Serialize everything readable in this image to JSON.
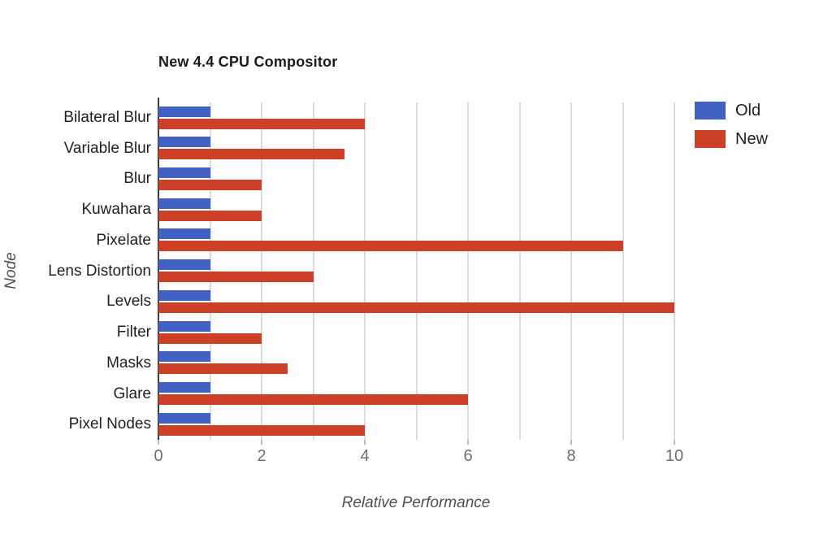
{
  "title": "New 4.4 CPU Compositor",
  "chart_data": {
    "type": "bar",
    "orientation": "horizontal",
    "title": "New 4.4 CPU Compositor",
    "xlabel": "Relative Performance",
    "ylabel": "Node",
    "categories": [
      "Bilateral Blur",
      "Variable Blur",
      "Blur",
      "Kuwahara",
      "Pixelate",
      "Lens Distortion",
      "Levels",
      "Filter",
      "Masks",
      "Glare",
      "Pixel Nodes"
    ],
    "series": [
      {
        "name": "Old",
        "color": "#4262c3",
        "values": [
          1,
          1,
          1,
          1,
          1,
          1,
          1,
          1,
          1,
          1,
          1
        ]
      },
      {
        "name": "New",
        "color": "#cb4027",
        "values": [
          4,
          3.6,
          2,
          2,
          9,
          3,
          10,
          2,
          2.5,
          6,
          4
        ]
      }
    ],
    "xlim": [
      0,
      10.24
    ],
    "xticks": [
      0,
      2,
      4,
      6,
      8,
      10
    ],
    "gridline_values": [
      1,
      2,
      3,
      4,
      5,
      6,
      7,
      8,
      9,
      10
    ],
    "grid": true,
    "legend_position": "top-right",
    "axis_color": "#3d3d3d",
    "gridline_color": "#dcdcdc",
    "background_color": "#ffffff"
  }
}
